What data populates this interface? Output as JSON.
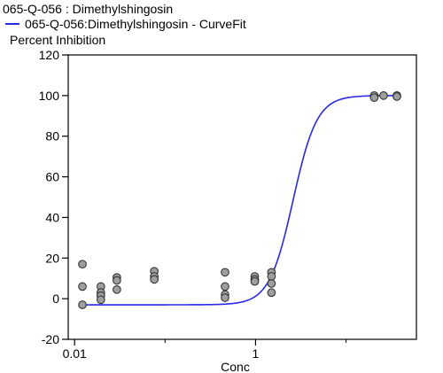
{
  "chart_data": {
    "type": "scatter",
    "title": "065-Q-056  : Dimethylshingosin",
    "ylabel": "Percent Inhibition",
    "xlabel": "Conc",
    "x_scale": "log",
    "xlim": [
      0.0085,
      60
    ],
    "ylim": [
      -20,
      120
    ],
    "y_ticks": [
      -20,
      0,
      20,
      40,
      60,
      80,
      100,
      120
    ],
    "x_ticks": [
      0.01,
      1
    ],
    "x_tick_labels": [
      "0.01",
      "1"
    ],
    "grid": false,
    "legend_position": "top-left",
    "series": [
      {
        "name": "065-Q-056:Dimethylshingosin - CurveFit",
        "kind": "curve",
        "color": "#2a2ae6",
        "bottom": -3,
        "top": 100,
        "ec50": 2.6,
        "hill": 3.3
      },
      {
        "kind": "points",
        "color": "#9e9e9e",
        "points": [
          [
            0.0122,
            17
          ],
          [
            0.0122,
            6
          ],
          [
            0.0122,
            -3
          ],
          [
            0.0195,
            6
          ],
          [
            0.0195,
            3
          ],
          [
            0.0195,
            1.5
          ],
          [
            0.0195,
            -0.5
          ],
          [
            0.0293,
            10.5
          ],
          [
            0.0293,
            9
          ],
          [
            0.0293,
            4.5
          ],
          [
            0.076,
            13.5
          ],
          [
            0.076,
            11
          ],
          [
            0.076,
            9.5
          ],
          [
            0.46,
            13
          ],
          [
            0.46,
            6
          ],
          [
            0.46,
            2
          ],
          [
            0.46,
            0.5
          ],
          [
            0.98,
            11
          ],
          [
            0.98,
            9.5
          ],
          [
            0.98,
            8.5
          ],
          [
            1.5,
            13
          ],
          [
            1.5,
            11
          ],
          [
            1.5,
            7.5
          ],
          [
            1.5,
            3
          ],
          [
            20.5,
            100
          ],
          [
            20.5,
            99
          ],
          [
            26,
            100
          ],
          [
            36.5,
            100
          ],
          [
            36.5,
            99.5
          ]
        ]
      }
    ]
  }
}
